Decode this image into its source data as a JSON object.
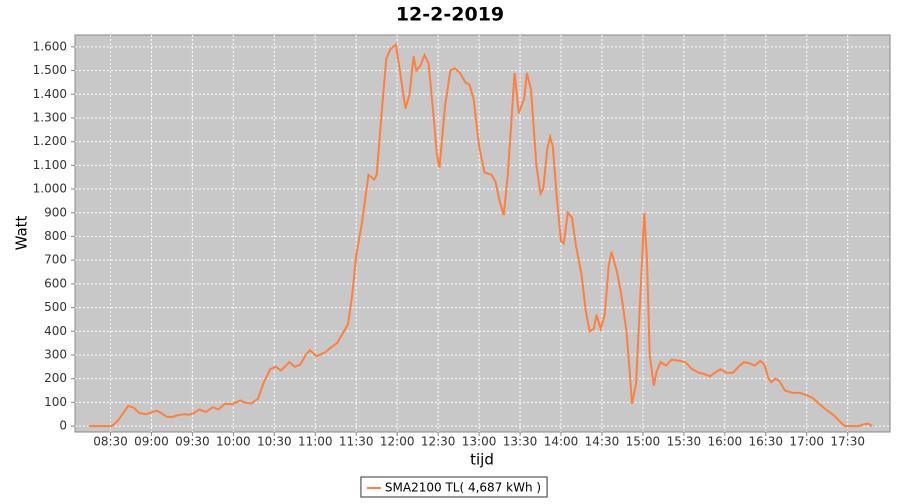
{
  "chart_data": {
    "type": "line",
    "title": "12-2-2019",
    "x_label": "tijd",
    "y_label": "Watt",
    "x": [
      "08:14",
      "08:31",
      "08:35",
      "08:40",
      "08:43",
      "08:47",
      "08:51",
      "08:56",
      "09:00",
      "09:04",
      "09:07",
      "09:11",
      "09:15",
      "09:19",
      "09:24",
      "09:28",
      "09:32",
      "09:35",
      "09:40",
      "09:45",
      "09:49",
      "09:54",
      "09:59",
      "10:05",
      "10:09",
      "10:13",
      "10:18",
      "10:22",
      "10:27",
      "10:31",
      "10:35",
      "10:41",
      "10:45",
      "10:49",
      "10:53",
      "10:56",
      "11:01",
      "11:07",
      "11:11",
      "11:16",
      "11:20",
      "11:24",
      "11:27",
      "11:30",
      "11:34",
      "11:39",
      "11:43",
      "11:45",
      "11:49",
      "11:52",
      "11:55",
      "11:59",
      "12:02",
      "12:06",
      "12:09",
      "12:12",
      "12:14",
      "12:17",
      "12:20",
      "12:23",
      "12:26",
      "12:29",
      "12:31",
      "12:35",
      "12:39",
      "12:42",
      "12:46",
      "12:50",
      "12:53",
      "12:56",
      "13:00",
      "13:04",
      "13:09",
      "13:12",
      "13:15",
      "13:18",
      "13:21",
      "13:26",
      "13:29",
      "13:33",
      "13:35",
      "13:38",
      "13:42",
      "13:45",
      "13:47",
      "13:50",
      "13:52",
      "13:54",
      "13:57",
      "14:00",
      "14:02",
      "14:05",
      "14:08",
      "14:11",
      "14:15",
      "14:18",
      "14:21",
      "14:24",
      "14:26",
      "14:29",
      "14:32",
      "14:35",
      "14:37",
      "14:41",
      "14:44",
      "14:48",
      "14:50",
      "14:52",
      "14:55",
      "14:59",
      "15:01",
      "15:03",
      "15:05",
      "15:08",
      "15:10",
      "15:13",
      "15:17",
      "15:21",
      "15:27",
      "15:31",
      "15:36",
      "15:41",
      "15:45",
      "15:49",
      "15:54",
      "15:57",
      "16:01",
      "16:06",
      "16:10",
      "16:14",
      "16:18",
      "16:22",
      "16:26",
      "16:29",
      "16:32",
      "16:34",
      "16:37",
      "16:40",
      "16:44",
      "16:50",
      "16:55",
      "17:00",
      "17:04",
      "17:09",
      "17:14",
      "17:20",
      "17:25",
      "17:28",
      "17:38",
      "17:42",
      "17:45",
      "17:48"
    ],
    "series": [
      {
        "name": "SMA2100 TL( 4,687 kWh )",
        "color": "#ff7f3f",
        "values": [
          0,
          0,
          20,
          60,
          85,
          78,
          55,
          50,
          58,
          65,
          55,
          40,
          38,
          45,
          50,
          48,
          58,
          70,
          60,
          80,
          70,
          95,
          92,
          108,
          98,
          95,
          115,
          180,
          240,
          250,
          235,
          270,
          250,
          260,
          300,
          320,
          295,
          310,
          330,
          350,
          390,
          430,
          550,
          720,
          850,
          1060,
          1040,
          1060,
          1350,
          1550,
          1590,
          1610,
          1500,
          1340,
          1400,
          1560,
          1500,
          1520,
          1565,
          1530,
          1350,
          1150,
          1090,
          1350,
          1500,
          1510,
          1490,
          1450,
          1440,
          1380,
          1180,
          1070,
          1060,
          1030,
          950,
          890,
          1060,
          1490,
          1320,
          1380,
          1490,
          1420,
          1100,
          980,
          1000,
          1170,
          1220,
          1180,
          960,
          780,
          770,
          900,
          880,
          760,
          640,
          490,
          400,
          410,
          470,
          410,
          470,
          680,
          735,
          650,
          560,
          400,
          250,
          95,
          180,
          650,
          900,
          700,
          300,
          170,
          230,
          270,
          255,
          280,
          275,
          270,
          240,
          225,
          220,
          210,
          230,
          240,
          225,
          225,
          250,
          270,
          265,
          255,
          275,
          260,
          200,
          185,
          200,
          190,
          150,
          140,
          140,
          130,
          120,
          95,
          70,
          45,
          15,
          0,
          0,
          8,
          10,
          0
        ]
      }
    ],
    "xlim": [
      "08:04",
      "18:01"
    ],
    "xticks": [
      "08:30",
      "09:00",
      "09:30",
      "10:00",
      "10:30",
      "11:00",
      "11:30",
      "12:00",
      "12:30",
      "13:00",
      "13:30",
      "14:00",
      "14:30",
      "15:00",
      "15:30",
      "16:00",
      "16:30",
      "17:00",
      "17:30"
    ],
    "ylim": [
      -25,
      1650
    ],
    "yticks": [
      0,
      100,
      200,
      300,
      400,
      500,
      600,
      700,
      800,
      900,
      {
        "value": 1000,
        "label": "1.000"
      },
      {
        "value": 1100,
        "label": "1.100"
      },
      {
        "value": 1200,
        "label": "1.200"
      },
      {
        "value": 1300,
        "label": "1.300"
      },
      {
        "value": 1400,
        "label": "1.400"
      },
      {
        "value": 1500,
        "label": "1.500"
      },
      {
        "value": 1600,
        "label": "1.600"
      }
    ],
    "grid": true
  }
}
